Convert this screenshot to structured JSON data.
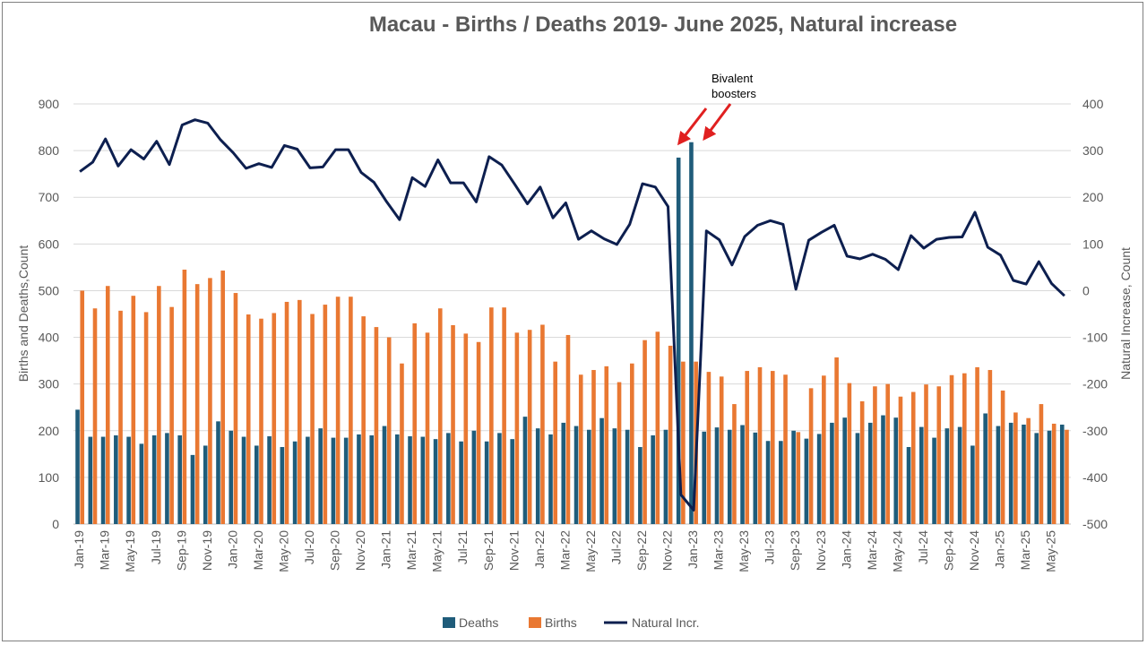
{
  "chart_data": {
    "type": "bar",
    "title": "Macau - Births / Deaths 2019- June 2025, Natural increase",
    "ylabel": "Births and Deaths,Count",
    "y2label": "Natural Increase, Count",
    "ylim": [
      0,
      900
    ],
    "y2lim": [
      -500,
      400
    ],
    "yticks": [
      0,
      100,
      200,
      300,
      400,
      500,
      600,
      700,
      800,
      900
    ],
    "y2ticks": [
      -500,
      -400,
      -300,
      -200,
      -100,
      0,
      100,
      200,
      300,
      400
    ],
    "grid": true,
    "legend_position": "bottom",
    "colors": {
      "deaths": "#1f5c7a",
      "births": "#e97832",
      "natural": "#0d1f4f",
      "arrow": "#e02020",
      "grid": "#d9d9d9",
      "text": "#595959"
    },
    "categories": [
      "Jan-19",
      "Feb-19",
      "Mar-19",
      "Apr-19",
      "May-19",
      "Jun-19",
      "Jul-19",
      "Aug-19",
      "Sep-19",
      "Oct-19",
      "Nov-19",
      "Dec-19",
      "Jan-20",
      "Feb-20",
      "Mar-20",
      "Apr-20",
      "May-20",
      "Jun-20",
      "Jul-20",
      "Aug-20",
      "Sep-20",
      "Oct-20",
      "Nov-20",
      "Dec-20",
      "Jan-21",
      "Feb-21",
      "Mar-21",
      "Apr-21",
      "May-21",
      "Jun-21",
      "Jul-21",
      "Aug-21",
      "Sep-21",
      "Oct-21",
      "Nov-21",
      "Dec-21",
      "Jan-22",
      "Feb-22",
      "Mar-22",
      "Apr-22",
      "May-22",
      "Jun-22",
      "Jul-22",
      "Aug-22",
      "Sep-22",
      "Oct-22",
      "Nov-22",
      "Dec-22",
      "Jan-23",
      "Feb-23",
      "Mar-23",
      "Apr-23",
      "May-23",
      "Jun-23",
      "Jul-23",
      "Aug-23",
      "Sep-23",
      "Oct-23",
      "Nov-23",
      "Dec-23",
      "Jan-24",
      "Feb-24",
      "Mar-24",
      "Apr-24",
      "May-24",
      "Jun-24",
      "Jul-24",
      "Aug-24",
      "Sep-24",
      "Oct-24",
      "Nov-24",
      "Dec-24",
      "Jan-25",
      "Feb-25",
      "Mar-25",
      "Apr-25",
      "May-25",
      "Jun-25"
    ],
    "series": [
      {
        "name": "Deaths",
        "type": "bar",
        "axis": "left",
        "values": [
          245,
          187,
          187,
          190,
          187,
          172,
          190,
          195,
          190,
          148,
          168,
          220,
          200,
          187,
          168,
          188,
          165,
          177,
          187,
          205,
          185,
          185,
          192,
          190,
          210,
          192,
          188,
          187,
          182,
          195,
          177,
          200,
          177,
          195,
          182,
          230,
          205,
          192,
          217,
          210,
          202,
          227,
          205,
          202,
          165,
          190,
          202,
          785,
          818,
          198,
          207,
          202,
          212,
          196,
          178,
          178,
          200,
          183,
          193,
          217,
          228,
          195,
          217,
          233,
          228,
          165,
          208,
          185,
          205,
          208,
          168,
          237,
          210,
          217,
          213,
          195,
          200,
          213
        ]
      },
      {
        "name": "Births",
        "type": "bar",
        "axis": "left",
        "values": [
          500,
          462,
          510,
          457,
          489,
          454,
          510,
          465,
          545,
          514,
          527,
          543,
          495,
          449,
          440,
          452,
          476,
          480,
          450,
          470,
          487,
          487,
          445,
          422,
          400,
          344,
          430,
          410,
          462,
          426,
          408,
          390,
          464,
          464,
          410,
          416,
          427,
          348,
          405,
          320,
          330,
          338,
          304,
          344,
          394,
          412,
          382,
          348,
          348,
          326,
          316,
          257,
          328,
          336,
          328,
          320,
          197,
          291,
          318,
          357,
          302,
          263,
          295,
          300,
          273,
          283,
          299,
          295,
          319,
          323,
          336,
          330,
          286,
          239,
          227,
          257,
          215,
          202
        ]
      },
      {
        "name": "Natural Incr.",
        "type": "line",
        "axis": "right",
        "values": [
          255,
          275,
          325,
          267,
          302,
          282,
          320,
          270,
          355,
          366,
          359,
          323,
          295,
          262,
          272,
          264,
          311,
          303,
          263,
          265,
          302,
          302,
          253,
          232,
          190,
          152,
          242,
          223,
          280,
          231,
          231,
          190,
          287,
          269,
          228,
          186,
          222,
          156,
          188,
          110,
          128,
          111,
          99,
          142,
          229,
          222,
          180,
          -437,
          -470,
          128,
          109,
          55,
          116,
          140,
          150,
          142,
          3,
          108,
          125,
          140,
          74,
          68,
          78,
          67,
          45,
          118,
          91,
          110,
          114,
          115,
          168,
          93,
          76,
          22,
          14,
          62,
          15,
          -11
        ]
      }
    ],
    "legend": [
      {
        "key": "deaths",
        "label": "Deaths"
      },
      {
        "key": "births",
        "label": "Births"
      },
      {
        "key": "natural",
        "label": "Natural Incr."
      }
    ],
    "annotation": {
      "text_lines": [
        "Bivalent",
        "boosters"
      ],
      "arrow_targets": [
        "Dec-22",
        "Jan-23"
      ]
    }
  }
}
